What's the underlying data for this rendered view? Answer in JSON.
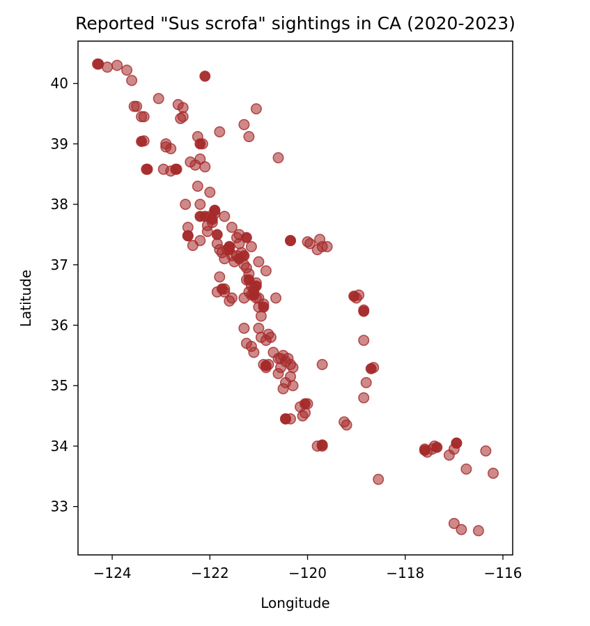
{
  "chart_data": {
    "type": "scatter",
    "title": "Reported \"Sus scrofa\" sightings in CA (2020-2023)",
    "xlabel": "Longitude",
    "ylabel": "Latitude",
    "xlim": [
      -124.7,
      -115.8
    ],
    "ylim": [
      32.2,
      40.7
    ],
    "xticks": [
      -124,
      -122,
      -120,
      -118,
      -116
    ],
    "xtick_labels": [
      "−124",
      "−122",
      "−120",
      "−118",
      "−116"
    ],
    "yticks": [
      33,
      34,
      35,
      36,
      37,
      38,
      39,
      40
    ],
    "ytick_labels": [
      "33",
      "34",
      "35",
      "36",
      "37",
      "38",
      "39",
      "40"
    ],
    "grid": false,
    "marker_color": "#a52a2a",
    "marker_alpha": 0.55,
    "series": [
      {
        "x": [
          -124.3,
          -124.1,
          -123.9,
          -123.7,
          -123.6,
          -123.55,
          -123.5,
          -123.4,
          -123.35,
          -123.35,
          -123.3,
          -123.05,
          -122.95,
          -122.9,
          -122.9,
          -122.8,
          -122.8,
          -122.7,
          -122.65,
          -122.6,
          -122.55,
          -122.55,
          -122.5,
          -122.45,
          -122.45,
          -122.4,
          -122.35,
          -122.3,
          -122.25,
          -122.25,
          -122.2,
          -122.2,
          -122.2,
          -122.15,
          -122.1,
          -122.05,
          -122.0,
          -121.9,
          -121.8,
          -121.7,
          -121.55,
          -121.4,
          -121.45,
          -121.3,
          -121.2,
          -121.15,
          -121.05,
          -121.0,
          -120.6,
          -120.35,
          -120.0,
          -119.95,
          -119.8,
          -119.75,
          -119.7,
          -119.6,
          -122.05,
          -122.0,
          -121.95,
          -121.9,
          -121.85,
          -121.8,
          -121.75,
          -121.7,
          -121.65,
          -121.6,
          -121.55,
          -121.5,
          -121.45,
          -121.4,
          -121.35,
          -121.3,
          -121.25,
          -121.2,
          -121.15,
          -121.1,
          -121.05,
          -121.0,
          -120.95,
          -120.85,
          -120.65,
          -121.85,
          -121.8,
          -121.7,
          -121.7,
          -121.6,
          -121.55,
          -121.3,
          -121.25,
          -121.2,
          -121.15,
          -121.1,
          -121.05,
          -121.0,
          -120.9,
          -121.3,
          -121.25,
          -121.15,
          -121.1,
          -121.0,
          -120.95,
          -120.85,
          -120.8,
          -120.75,
          -120.7,
          -120.6,
          -120.55,
          -120.5,
          -120.45,
          -120.4,
          -120.35,
          -120.3,
          -120.9,
          -120.85,
          -120.8,
          -120.6,
          -120.55,
          -120.5,
          -120.45,
          -120.35,
          -120.3,
          -120.15,
          -120.05,
          -120.1,
          -120.0,
          -120.45,
          -120.35,
          -119.8,
          -119.7,
          -119.7,
          -119.25,
          -119.2,
          -119.0,
          -118.95,
          -118.85,
          -118.85,
          -118.8,
          -118.85,
          -118.65,
          -118.55,
          -117.6,
          -117.55,
          -117.45,
          -117.4,
          -117.1,
          -117.0,
          -116.95,
          -116.75,
          -116.35,
          -116.2,
          -117.0,
          -116.85,
          -116.5,
          -124.28,
          -122.1,
          -123.4,
          -123.28,
          -122.68,
          -122.2,
          -122.45,
          -122.2,
          -122.1,
          -121.9,
          -121.6,
          -121.4,
          -121.3,
          -121.25,
          -121.2,
          -121.1,
          -121.05,
          -120.9,
          -120.35,
          -120.45,
          -120.05,
          -119.7,
          -119.05,
          -118.85,
          -118.7,
          -117.6,
          -117.35,
          -116.95,
          -121.75,
          -121.95,
          -121.85,
          -121.6,
          -120.85
        ],
        "y": [
          40.32,
          40.27,
          40.3,
          40.22,
          40.05,
          39.62,
          39.62,
          39.45,
          39.05,
          39.45,
          38.58,
          39.75,
          38.58,
          38.95,
          39.0,
          38.92,
          38.55,
          38.58,
          39.65,
          39.42,
          39.6,
          39.45,
          38.0,
          37.62,
          37.48,
          38.7,
          37.32,
          38.65,
          39.12,
          38.3,
          38.0,
          38.75,
          37.4,
          39.0,
          38.62,
          37.55,
          38.2,
          37.9,
          39.2,
          37.8,
          37.62,
          37.35,
          37.15,
          39.32,
          39.12,
          37.3,
          39.58,
          37.05,
          38.77,
          37.4,
          37.38,
          37.35,
          37.25,
          37.42,
          37.3,
          37.3,
          37.65,
          37.8,
          37.7,
          37.85,
          37.35,
          37.25,
          37.2,
          37.1,
          37.25,
          37.3,
          37.15,
          37.05,
          37.45,
          37.5,
          37.2,
          37.0,
          36.95,
          36.85,
          36.65,
          36.55,
          36.45,
          36.3,
          36.15,
          36.9,
          36.45,
          36.55,
          36.8,
          36.55,
          36.6,
          36.4,
          36.45,
          36.45,
          36.75,
          36.55,
          36.5,
          36.6,
          36.7,
          36.45,
          36.35,
          35.95,
          35.7,
          35.65,
          35.55,
          35.95,
          35.8,
          35.75,
          35.85,
          35.8,
          35.55,
          35.45,
          35.45,
          35.5,
          35.4,
          35.45,
          35.35,
          35.3,
          35.35,
          35.3,
          35.35,
          35.2,
          35.3,
          34.95,
          35.05,
          35.15,
          35.0,
          34.65,
          34.55,
          34.5,
          34.7,
          34.45,
          34.45,
          34.0,
          34.0,
          35.35,
          34.4,
          34.35,
          36.45,
          36.5,
          36.25,
          35.75,
          35.05,
          34.8,
          35.3,
          33.45,
          33.95,
          33.9,
          33.95,
          34.0,
          33.85,
          33.95,
          34.05,
          33.62,
          33.92,
          33.55,
          32.72,
          32.62,
          32.6,
          40.32,
          40.12,
          39.04,
          38.58,
          38.58,
          39.0,
          37.48,
          37.8,
          37.8,
          37.9,
          37.3,
          37.1,
          37.15,
          37.45,
          36.75,
          36.5,
          36.65,
          36.3,
          37.4,
          34.45,
          34.7,
          34.02,
          36.48,
          36.23,
          35.28,
          33.93,
          33.98,
          34.05,
          36.6,
          37.75,
          37.5,
          37.25,
          35.33
        ],
        "alpha": [
          0.55,
          0.55,
          0.55,
          0.55,
          0.55,
          0.55,
          0.55,
          0.55,
          0.55,
          0.55,
          0.55,
          0.55,
          0.55,
          0.55,
          0.55,
          0.55,
          0.55,
          0.55,
          0.55,
          0.55,
          0.55,
          0.55,
          0.55,
          0.55,
          0.55,
          0.55,
          0.55,
          0.55,
          0.55,
          0.55,
          0.55,
          0.55,
          0.55,
          0.55,
          0.55,
          0.55,
          0.55,
          0.55,
          0.55,
          0.55,
          0.55,
          0.55,
          0.55,
          0.55,
          0.55,
          0.55,
          0.55,
          0.55,
          0.55,
          0.55,
          0.55,
          0.55,
          0.55,
          0.55,
          0.55,
          0.55,
          0.55,
          0.55,
          0.55,
          0.55,
          0.55,
          0.55,
          0.55,
          0.55,
          0.55,
          0.55,
          0.55,
          0.55,
          0.55,
          0.55,
          0.55,
          0.55,
          0.55,
          0.55,
          0.55,
          0.55,
          0.55,
          0.55,
          0.55,
          0.55,
          0.55,
          0.55,
          0.55,
          0.55,
          0.55,
          0.55,
          0.55,
          0.55,
          0.55,
          0.55,
          0.55,
          0.55,
          0.55,
          0.55,
          0.55,
          0.55,
          0.55,
          0.55,
          0.55,
          0.55,
          0.55,
          0.55,
          0.55,
          0.55,
          0.55,
          0.55,
          0.55,
          0.55,
          0.55,
          0.55,
          0.55,
          0.55,
          0.55,
          0.55,
          0.55,
          0.55,
          0.55,
          0.55,
          0.55,
          0.55,
          0.55,
          0.55,
          0.55,
          0.55,
          0.55,
          0.55,
          0.55,
          0.55,
          0.55,
          0.55,
          0.55,
          0.55,
          0.55,
          0.55,
          0.55,
          0.55,
          0.55,
          0.55,
          0.55,
          0.55,
          0.55,
          0.55,
          0.55,
          0.55,
          0.55,
          0.55,
          0.55,
          0.55,
          0.55,
          0.55,
          0.55,
          0.55,
          0.55,
          0.95,
          0.95,
          0.95,
          0.95,
          0.95,
          0.95,
          0.95,
          0.95,
          0.95,
          0.95,
          0.95,
          0.95,
          0.95,
          0.95,
          0.95,
          0.95,
          0.95,
          0.95,
          0.95,
          0.95,
          0.95,
          0.95,
          0.95,
          0.95,
          0.95,
          0.95,
          0.95,
          0.95,
          0.95,
          0.95,
          0.95,
          0.95,
          0.95
        ]
      }
    ]
  }
}
